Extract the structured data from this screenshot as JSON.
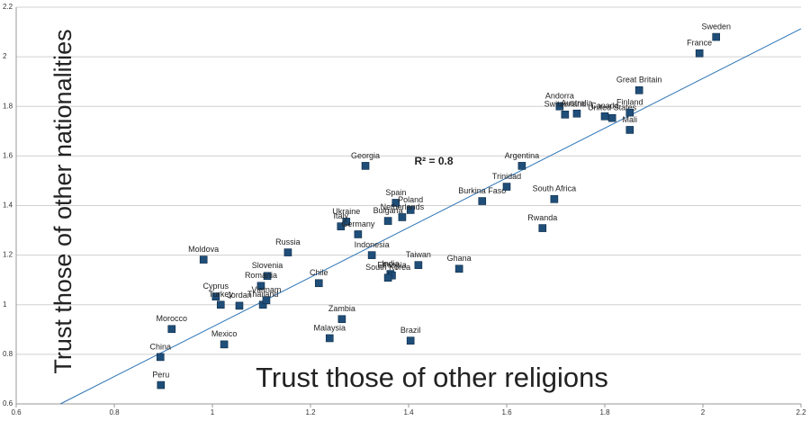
{
  "chart_data": {
    "type": "scatter",
    "annotation": "R² = 0.8",
    "x_label": "Trust those of other religions",
    "y_label": "Trust those of other nationalities",
    "color": "#1f4e79",
    "trend_color": "#2e75b6",
    "grid": true,
    "xlim": [
      0.6,
      2.2
    ],
    "ylim": [
      0.6,
      2.2
    ],
    "xticks": [
      0.6,
      0.8,
      1,
      1.2,
      1.4,
      1.6,
      1.8,
      2,
      2.2
    ],
    "yticks": [
      0.6,
      0.8,
      1,
      1.2,
      1.4,
      1.6,
      1.8,
      2,
      2.2
    ],
    "trendline": {
      "x": [
        0.69,
        2.2
      ],
      "y": [
        0.6,
        2.113
      ]
    },
    "points": [
      {
        "label": "Sweden",
        "x": 2.027,
        "y": 2.08
      },
      {
        "label": "France",
        "x": 1.993,
        "y": 2.014
      },
      {
        "label": "Great Britain",
        "x": 1.87,
        "y": 1.865
      },
      {
        "label": "Andorra",
        "x": 1.708,
        "y": 1.8
      },
      {
        "label": "Switzerland",
        "x": 1.719,
        "y": 1.767
      },
      {
        "label": "Australia",
        "x": 1.743,
        "y": 1.771
      },
      {
        "label": "Canada",
        "x": 1.8,
        "y": 1.76
      },
      {
        "label": "United States",
        "x": 1.815,
        "y": 1.753
      },
      {
        "label": "Finland",
        "x": 1.851,
        "y": 1.775
      },
      {
        "label": "Mali",
        "x": 1.851,
        "y": 1.705
      },
      {
        "label": "Argentina",
        "x": 1.631,
        "y": 1.56
      },
      {
        "label": "Georgia",
        "x": 1.312,
        "y": 1.56
      },
      {
        "label": "Burkina Faso",
        "x": 1.55,
        "y": 1.418
      },
      {
        "label": "Trinidad",
        "x": 1.6,
        "y": 1.476
      },
      {
        "label": "South Africa",
        "x": 1.697,
        "y": 1.426
      },
      {
        "label": "Rwanda",
        "x": 1.673,
        "y": 1.309
      },
      {
        "label": "Spain",
        "x": 1.374,
        "y": 1.411
      },
      {
        "label": "Poland",
        "x": 1.404,
        "y": 1.382
      },
      {
        "label": "Netherlands",
        "x": 1.387,
        "y": 1.353
      },
      {
        "label": "Bulgaria",
        "x": 1.358,
        "y": 1.338
      },
      {
        "label": "Ukraine",
        "x": 1.273,
        "y": 1.335
      },
      {
        "label": "Italy",
        "x": 1.262,
        "y": 1.316
      },
      {
        "label": "Germany",
        "x": 1.297,
        "y": 1.284
      },
      {
        "label": "Indonesia",
        "x": 1.325,
        "y": 1.2
      },
      {
        "label": "Russia",
        "x": 1.154,
        "y": 1.211
      },
      {
        "label": "Moldova",
        "x": 0.982,
        "y": 1.182
      },
      {
        "label": "Slovenia",
        "x": 1.112,
        "y": 1.116
      },
      {
        "label": "Romania",
        "x": 1.099,
        "y": 1.076
      },
      {
        "label": "Chile",
        "x": 1.217,
        "y": 1.087
      },
      {
        "label": "Taiwan",
        "x": 1.42,
        "y": 1.16
      },
      {
        "label": "Ghana",
        "x": 1.503,
        "y": 1.145
      },
      {
        "label": "India",
        "x": 1.363,
        "y": 1.124
      },
      {
        "label": "Ethiopia",
        "x": 1.366,
        "y": 1.118
      },
      {
        "label": "South Korea",
        "x": 1.358,
        "y": 1.109
      },
      {
        "label": "Cyprus",
        "x": 1.007,
        "y": 1.033
      },
      {
        "label": "Turkey",
        "x": 1.017,
        "y": 1.0
      },
      {
        "label": "Jordan",
        "x": 1.055,
        "y": 0.996
      },
      {
        "label": "Thailand",
        "x": 1.103,
        "y": 1.0
      },
      {
        "label": "Vietnam",
        "x": 1.11,
        "y": 1.018
      },
      {
        "label": "Zambia",
        "x": 1.264,
        "y": 0.942
      },
      {
        "label": "Malaysia",
        "x": 1.239,
        "y": 0.865
      },
      {
        "label": "Brazil",
        "x": 1.404,
        "y": 0.855
      },
      {
        "label": "Mexico",
        "x": 1.024,
        "y": 0.84
      },
      {
        "label": "Morocco",
        "x": 0.917,
        "y": 0.902
      },
      {
        "label": "China",
        "x": 0.894,
        "y": 0.789
      },
      {
        "label": "Peru",
        "x": 0.895,
        "y": 0.676
      }
    ]
  }
}
